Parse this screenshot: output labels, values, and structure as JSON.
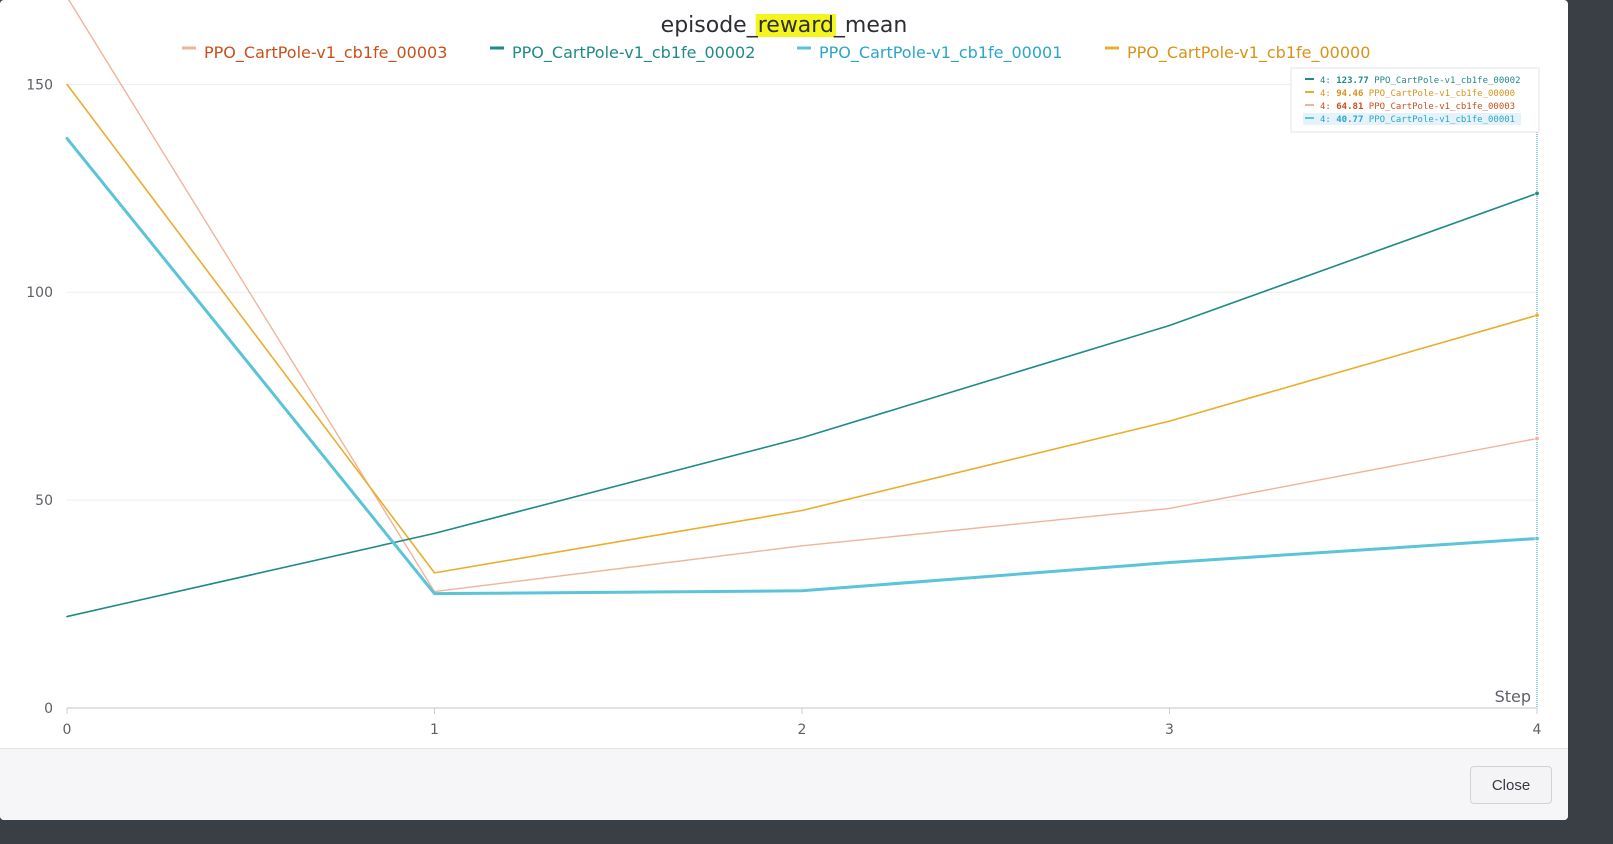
{
  "chart_data": {
    "type": "line",
    "title_parts": [
      "episode_",
      "reward",
      "_mean"
    ],
    "title_highlight_color": "#f5f51e",
    "xlabel": "Step",
    "x": [
      0,
      1,
      2,
      3,
      4
    ],
    "xlim": [
      0,
      4
    ],
    "ylim": [
      0,
      165
    ],
    "yticks": [
      0,
      50,
      100,
      150
    ],
    "xticks": [
      0,
      1,
      2,
      3,
      4
    ],
    "grid": true,
    "legend_position": "top",
    "series": [
      {
        "name": "PPO_CartPole-v1_cb1fe_00003",
        "color": "#f0b498",
        "text_color": "#c9501c",
        "width": 1.4,
        "values": [
          171,
          28,
          39,
          48,
          64.81
        ]
      },
      {
        "name": "PPO_CartPole-v1_cb1fe_00002",
        "color": "#1f8b86",
        "text_color": "#1f8b86",
        "width": 1.6,
        "values": [
          22,
          42,
          65,
          92,
          123.77
        ]
      },
      {
        "name": "PPO_CartPole-v1_cb1fe_00001",
        "color": "#5bc4d8",
        "text_color": "#2aa7c6",
        "width": 3.0,
        "values": [
          137,
          27.5,
          28.2,
          35,
          40.77
        ]
      },
      {
        "name": "PPO_CartPole-v1_cb1fe_00000",
        "color": "#e8ae2c",
        "text_color": "#d9921a",
        "width": 1.6,
        "values": [
          150,
          32.5,
          47.5,
          69,
          94.46
        ]
      }
    ],
    "hover": {
      "step": 4,
      "entries": [
        {
          "series": "PPO_CartPole-v1_cb1fe_00002",
          "value": "123.77"
        },
        {
          "series": "PPO_CartPole-v1_cb1fe_00000",
          "value": "94.46"
        },
        {
          "series": "PPO_CartPole-v1_cb1fe_00003",
          "value": "64.81"
        },
        {
          "series": "PPO_CartPole-v1_cb1fe_00001",
          "value": "40.77"
        }
      ]
    }
  },
  "footer": {
    "close_label": "Close"
  }
}
